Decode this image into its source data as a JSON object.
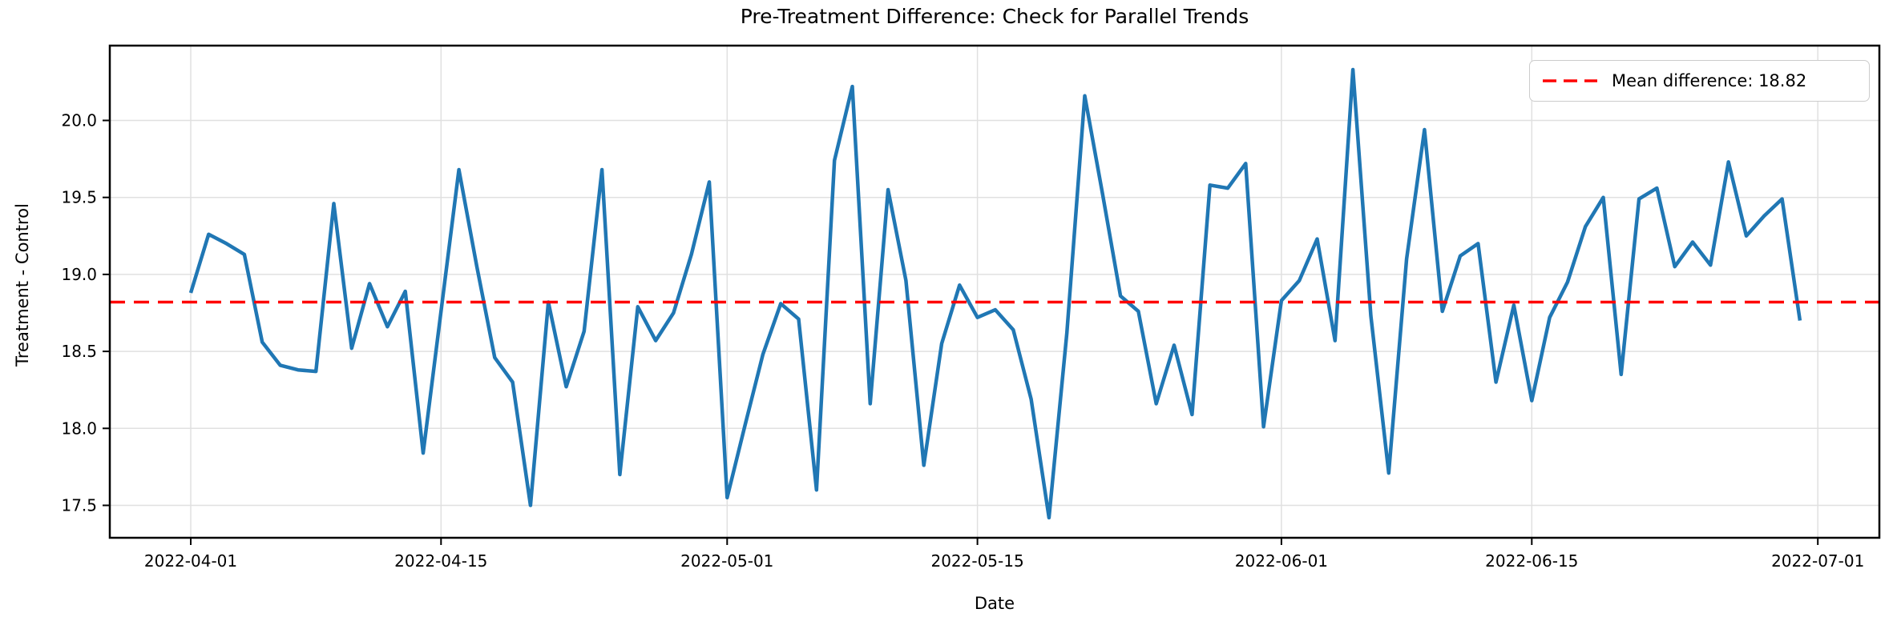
{
  "figure": {
    "background": "#ffffff"
  },
  "chart_data": {
    "type": "line",
    "title": "Pre-Treatment Difference: Check for Parallel Trends",
    "xlabel": "Date",
    "ylabel": "Treatment - Control",
    "grid": true,
    "x_start_date": "2022-04-01",
    "x_end_date": "2022-06-30",
    "x_tick_labels": [
      "2022-04-01",
      "2022-04-15",
      "2022-05-01",
      "2022-05-15",
      "2022-06-01",
      "2022-06-15",
      "2022-07-01"
    ],
    "x_tick_day_index": [
      0,
      14,
      30,
      44,
      61,
      75,
      91
    ],
    "y_ticks": [
      17.5,
      18.0,
      18.5,
      19.0,
      19.5,
      20.0
    ],
    "ylim": [
      17.29,
      20.57
    ],
    "xlim_day_index": [
      -4.5,
      94.4
    ],
    "mean_line": {
      "value": 18.82,
      "color": "#ff0000",
      "linestyle": "dashed"
    },
    "legend": {
      "position": "upper right",
      "entries": [
        {
          "label": "Mean difference: 18.82",
          "color": "#ff0000",
          "linestyle": "dashed"
        }
      ]
    },
    "series": [
      {
        "name": "Treatment - Control",
        "color": "#2077b4",
        "values": [
          18.88,
          19.26,
          19.2,
          19.13,
          18.56,
          18.41,
          18.38,
          18.37,
          19.46,
          18.52,
          18.94,
          18.66,
          18.89,
          17.84,
          18.76,
          19.68,
          19.05,
          18.46,
          18.3,
          17.5,
          18.82,
          18.27,
          18.63,
          19.68,
          17.7,
          18.79,
          18.57,
          18.75,
          19.13,
          19.6,
          17.55,
          18.02,
          18.48,
          18.81,
          18.71,
          17.6,
          19.74,
          20.22,
          18.16,
          19.55,
          18.96,
          17.76,
          18.55,
          18.93,
          18.72,
          18.77,
          18.64,
          18.19,
          17.42,
          18.62,
          20.16,
          19.52,
          18.86,
          18.76,
          18.16,
          18.54,
          18.09,
          19.58,
          19.56,
          19.72,
          18.01,
          18.83,
          18.96,
          19.23,
          18.57,
          20.33,
          18.73,
          17.71,
          19.1,
          19.94,
          18.76,
          19.12,
          19.2,
          18.3,
          18.8,
          18.18,
          18.72,
          18.95,
          19.31,
          19.5,
          18.35,
          19.49,
          19.56,
          19.05,
          19.21,
          19.06,
          19.73,
          19.25,
          19.38,
          19.49,
          18.7
        ]
      }
    ]
  }
}
